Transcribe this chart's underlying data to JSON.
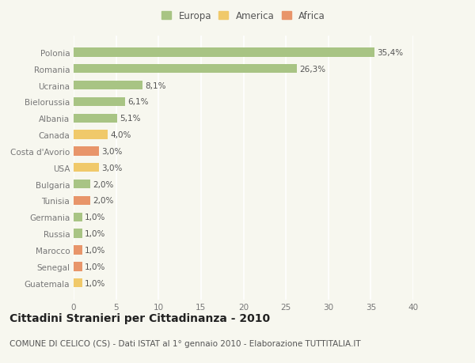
{
  "categories": [
    "Polonia",
    "Romania",
    "Ucraina",
    "Bielorussia",
    "Albania",
    "Canada",
    "Costa d'Avorio",
    "USA",
    "Bulgaria",
    "Tunisia",
    "Germania",
    "Russia",
    "Marocco",
    "Senegal",
    "Guatemala"
  ],
  "values": [
    35.4,
    26.3,
    8.1,
    6.1,
    5.1,
    4.0,
    3.0,
    3.0,
    2.0,
    2.0,
    1.0,
    1.0,
    1.0,
    1.0,
    1.0
  ],
  "labels": [
    "35,4%",
    "26,3%",
    "8,1%",
    "6,1%",
    "5,1%",
    "4,0%",
    "3,0%",
    "3,0%",
    "2,0%",
    "2,0%",
    "1,0%",
    "1,0%",
    "1,0%",
    "1,0%",
    "1,0%"
  ],
  "continent": [
    "Europa",
    "Europa",
    "Europa",
    "Europa",
    "Europa",
    "America",
    "Africa",
    "America",
    "Europa",
    "Africa",
    "Europa",
    "Europa",
    "Africa",
    "Africa",
    "America"
  ],
  "colors": {
    "Europa": "#a8c484",
    "America": "#f0c96a",
    "Africa": "#e8956a"
  },
  "legend_colors": {
    "Europa": "#a8c484",
    "America": "#f0c96a",
    "Africa": "#e8956a"
  },
  "background_color": "#f7f7ef",
  "grid_color": "#ffffff",
  "title": "Cittadini Stranieri per Cittadinanza - 2010",
  "subtitle": "COMUNE DI CELICO (CS) - Dati ISTAT al 1° gennaio 2010 - Elaborazione TUTTITALIA.IT",
  "xlim": [
    0,
    40
  ],
  "xticks": [
    0,
    5,
    10,
    15,
    20,
    25,
    30,
    35,
    40
  ],
  "title_fontsize": 10,
  "subtitle_fontsize": 7.5,
  "label_fontsize": 7.5,
  "tick_fontsize": 7.5,
  "legend_fontsize": 8.5
}
